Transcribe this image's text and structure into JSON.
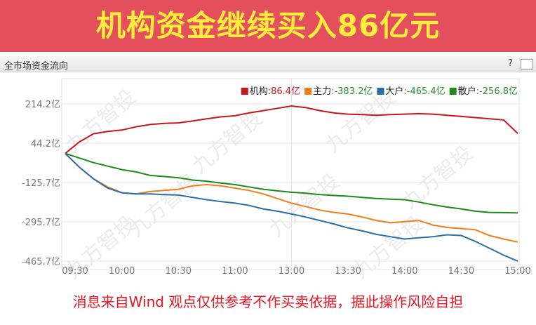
{
  "banner": {
    "title": "机构资金继续买入86亿元"
  },
  "panel": {
    "title": "全市场资金流向",
    "help": "?"
  },
  "watermark": "九方智投",
  "footer": "消息来自Wind  观点仅供参考不作买卖依据，据此操作风险自担",
  "chart_data": {
    "type": "line",
    "categories": [
      "09:30",
      null,
      null,
      null,
      "10:00",
      null,
      null,
      null,
      "10:30",
      null,
      null,
      null,
      "11:00",
      null,
      null,
      null,
      "13:00",
      null,
      null,
      null,
      "13:30",
      null,
      null,
      null,
      "14:00",
      null,
      null,
      null,
      "14:30",
      null,
      null,
      null,
      "15:00"
    ],
    "ylim": [
      -465.7,
      214.2
    ],
    "yticks": [
      {
        "value": 214.2,
        "label": "214.2亿"
      },
      {
        "value": 44.2,
        "label": "44.2亿"
      },
      {
        "value": -125.7,
        "label": "-125.7亿"
      },
      {
        "value": -295.7,
        "label": "-295.7亿"
      },
      {
        "value": -465.7,
        "label": "-465.7亿"
      }
    ],
    "grid": true,
    "series": [
      {
        "name": "机构",
        "color": "#c8161d",
        "legend_value": ":86.4亿",
        "legend_value_color": "#c8161d",
        "values": [
          0,
          50,
          85,
          95,
          101,
          115,
          125,
          130,
          132,
          140,
          150,
          158,
          163,
          175,
          185,
          195,
          205,
          198,
          185,
          175,
          170,
          168,
          165,
          168,
          170,
          172,
          170,
          165,
          160,
          155,
          150,
          145,
          86.4
        ]
      },
      {
        "name": "主力",
        "color": "#f07d1c",
        "legend_value": ":-383.2亿",
        "legend_value_color": "#2f8f2f",
        "values": [
          0,
          -60,
          -110,
          -145,
          -170,
          -175,
          -165,
          -160,
          -155,
          -140,
          -135,
          -140,
          -150,
          -160,
          -175,
          -195,
          -215,
          -230,
          -245,
          -255,
          -262,
          -275,
          -290,
          -300,
          -295,
          -290,
          -310,
          -320,
          -325,
          -330,
          -355,
          -370,
          -383.2
        ]
      },
      {
        "name": "大户",
        "color": "#2a6fa8",
        "legend_value": ":-465.4亿",
        "legend_value_color": "#2f8f2f",
        "values": [
          0,
          -60,
          -110,
          -150,
          -170,
          -175,
          -175,
          -178,
          -180,
          -190,
          -200,
          -208,
          -215,
          -225,
          -240,
          -250,
          -262,
          -275,
          -290,
          -305,
          -322,
          -335,
          -350,
          -360,
          -370,
          -365,
          -360,
          -352,
          -355,
          -380,
          -410,
          -440,
          -465.4
        ]
      },
      {
        "name": "散户",
        "color": "#1c8a1c",
        "legend_value": ":-256.8亿",
        "legend_value_color": "#2f8f2f",
        "values": [
          0,
          -20,
          -40,
          -55,
          -70,
          -80,
          -95,
          -100,
          -105,
          -115,
          -120,
          -128,
          -135,
          -145,
          -155,
          -162,
          -168,
          -172,
          -178,
          -182,
          -185,
          -190,
          -195,
          -198,
          -200,
          -210,
          -222,
          -232,
          -240,
          -250,
          -255,
          -256,
          -256.8
        ]
      }
    ]
  }
}
